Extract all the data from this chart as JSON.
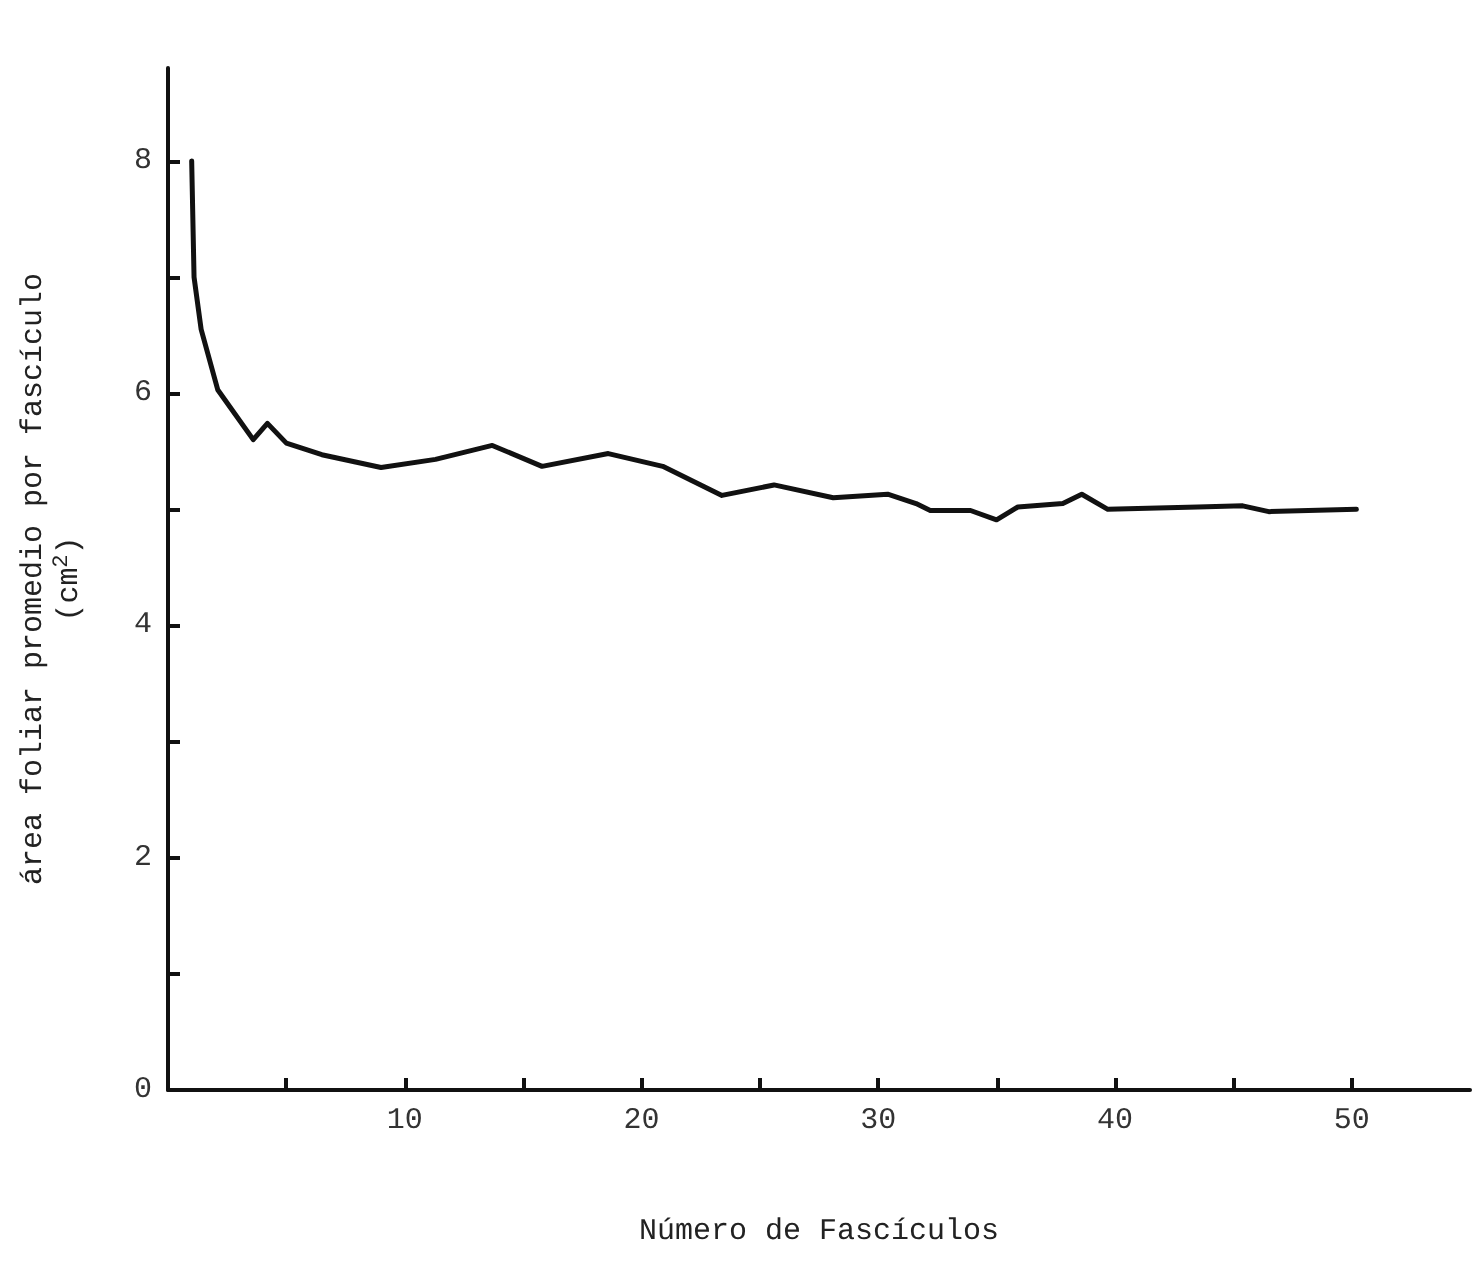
{
  "chart_data": {
    "type": "line",
    "xlabel": "Número de Fascículos",
    "ylabel": "área foliar promedio por fascículo\n(cm$^{2}$)",
    "x": [
      1.0,
      1.1,
      1.4,
      2.1,
      3.6,
      4.2,
      5.0,
      6.5,
      9.0,
      11.3,
      13.7,
      15.8,
      18.6,
      20.9,
      23.4,
      25.6,
      28.1,
      30.4,
      31.6,
      32.2,
      33.9,
      35.0,
      35.9,
      37.8,
      38.6,
      39.7,
      43.5,
      45.4,
      46.5,
      50.2
    ],
    "series": [
      {
        "color": "#111111",
        "values": [
          8.0,
          7.0,
          6.55,
          6.03,
          5.6,
          5.74,
          5.57,
          5.47,
          5.36,
          5.43,
          5.55,
          5.37,
          5.48,
          5.37,
          5.12,
          5.21,
          5.1,
          5.13,
          5.05,
          4.99,
          4.99,
          4.91,
          5.02,
          5.05,
          5.13,
          5.0,
          5.02,
          5.03,
          4.98,
          5.0
        ]
      }
    ],
    "xlim": [
      0,
      55
    ],
    "xticks": [
      {
        "value": 5,
        "label": null
      },
      10,
      {
        "value": 15,
        "label": null
      },
      20,
      {
        "value": 25,
        "label": null
      },
      30,
      {
        "value": 35,
        "label": null
      },
      40,
      {
        "value": 45,
        "label": null
      },
      50
    ],
    "ylim": [
      0,
      8.8
    ],
    "yticks": [
      0,
      {
        "value": 1,
        "label": null
      },
      2,
      {
        "value": 3,
        "label": null
      },
      4,
      {
        "value": 5,
        "label": null
      },
      6,
      {
        "value": 7,
        "label": null
      },
      8
    ],
    "marker": "none",
    "line_style": "solid"
  }
}
